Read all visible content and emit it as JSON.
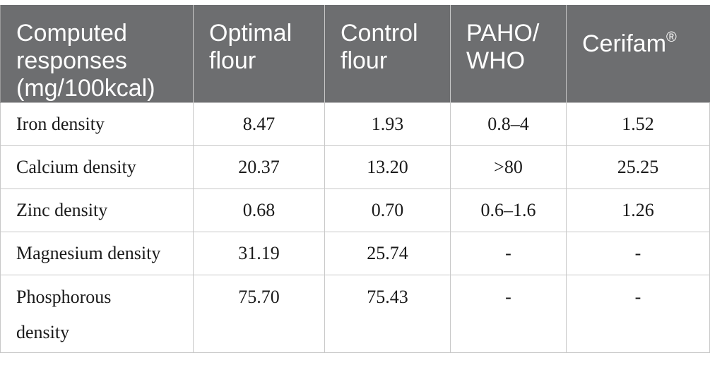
{
  "table": {
    "headers": [
      "Computed\nresponses\n(mg/100kcal)",
      "Optimal\nflour",
      "Control\nflour",
      "PAHO/\nWHO",
      "Cerifam"
    ],
    "cerifam_mark": "®",
    "rows": [
      {
        "label": "Iron density",
        "optimal": "8.47",
        "control": "1.93",
        "paho": "0.8–4",
        "cerifam": "1.52"
      },
      {
        "label": "Calcium density",
        "optimal": "20.37",
        "control": "13.20",
        "paho": ">80",
        "cerifam": "25.25"
      },
      {
        "label": "Zinc density",
        "optimal": "0.68",
        "control": "0.70",
        "paho": "0.6–1.6",
        "cerifam": "1.26"
      },
      {
        "label": "Magnesium density",
        "optimal": "31.19",
        "control": "25.74",
        "paho": "-",
        "cerifam": "-"
      },
      {
        "label": "Phosphorous\ndensity",
        "optimal": "75.70",
        "control": "75.43",
        "paho": "-",
        "cerifam": "-"
      }
    ]
  },
  "colors": {
    "header_bg": "#6d6e70",
    "header_text": "#ffffff",
    "grid": "#c8c8c8"
  }
}
